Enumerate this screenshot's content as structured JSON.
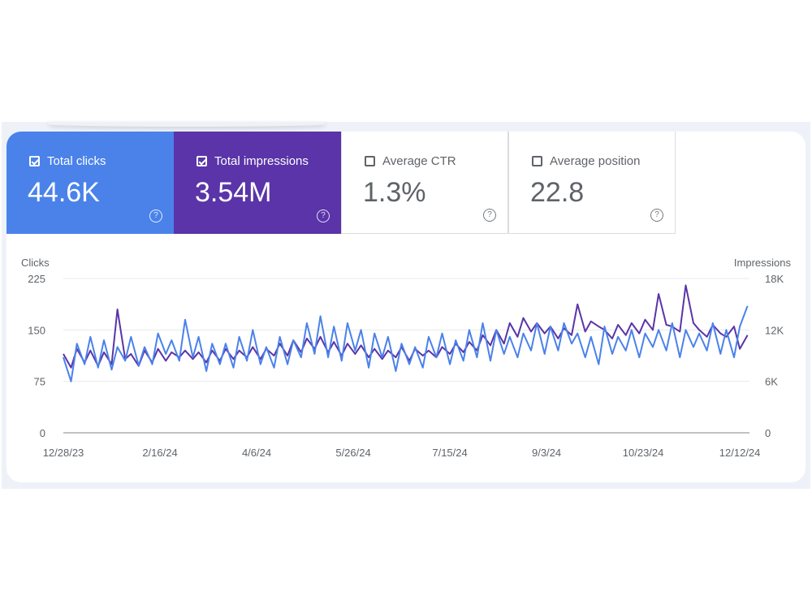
{
  "cards": [
    {
      "id": "clicks",
      "label": "Total clicks",
      "value": "44.6K",
      "checked": true,
      "color": "#4a82ea"
    },
    {
      "id": "impressions",
      "label": "Total impressions",
      "value": "3.54M",
      "checked": true,
      "color": "#5a34a8"
    },
    {
      "id": "ctr",
      "label": "Average CTR",
      "value": "1.3%",
      "checked": false
    },
    {
      "id": "position",
      "label": "Average position",
      "value": "22.8",
      "checked": false
    }
  ],
  "help_glyph": "?",
  "chart_data": {
    "type": "line",
    "ylabel_left": "Clicks",
    "ylabel_right": "Impressions",
    "yticks_left": [
      "0",
      "75",
      "150",
      "225"
    ],
    "yticks_right": [
      "0",
      "6K",
      "12K",
      "18K"
    ],
    "ylim_left": [
      0,
      225
    ],
    "ylim_right": [
      0,
      18000
    ],
    "x_ticks": [
      "12/28/23",
      "2/16/24",
      "4/6/24",
      "5/26/24",
      "7/15/24",
      "9/3/24",
      "10/23/24",
      "12/12/24"
    ],
    "x_tick_day_offsets": [
      0,
      50,
      100,
      150,
      200,
      250,
      300,
      350
    ],
    "x_range_days": [
      0,
      355
    ],
    "grid": true,
    "series": [
      {
        "name": "Clicks",
        "axis": "left",
        "color": "#4a82ea",
        "days": [
          0,
          4,
          7,
          11,
          14,
          18,
          21,
          25,
          28,
          32,
          35,
          39,
          42,
          46,
          49,
          53,
          56,
          60,
          63,
          67,
          70,
          74,
          77,
          81,
          84,
          88,
          91,
          95,
          98,
          102,
          105,
          109,
          112,
          116,
          119,
          123,
          126,
          130,
          133,
          137,
          140,
          144,
          147,
          151,
          154,
          158,
          161,
          165,
          168,
          172,
          175,
          179,
          182,
          186,
          189,
          193,
          196,
          200,
          203,
          207,
          210,
          214,
          217,
          221,
          224,
          228,
          231,
          235,
          238,
          242,
          245,
          249,
          252,
          256,
          259,
          263,
          266,
          270,
          273,
          277,
          280,
          284,
          287,
          291,
          294,
          298,
          301,
          305,
          308,
          312,
          315,
          319,
          322,
          326,
          329,
          333,
          336,
          340,
          343,
          347,
          350,
          354
        ],
        "values": [
          110,
          75,
          130,
          100,
          140,
          95,
          135,
          92,
          125,
          105,
          140,
          98,
          125,
          100,
          145,
          115,
          135,
          105,
          165,
          110,
          140,
          90,
          130,
          100,
          130,
          95,
          140,
          105,
          150,
          100,
          125,
          95,
          140,
          100,
          135,
          110,
          160,
          115,
          170,
          110,
          155,
          105,
          160,
          120,
          150,
          95,
          145,
          110,
          140,
          90,
          130,
          100,
          125,
          95,
          140,
          110,
          145,
          100,
          135,
          105,
          150,
          110,
          160,
          105,
          150,
          115,
          140,
          110,
          145,
          120,
          160,
          115,
          155,
          120,
          160,
          130,
          145,
          110,
          140,
          100,
          155,
          115,
          140,
          120,
          150,
          110,
          145,
          125,
          150,
          120,
          160,
          110,
          150,
          125,
          145,
          120,
          160,
          115,
          150,
          110,
          155,
          185
        ]
      },
      {
        "name": "Impressions",
        "axis": "right",
        "color": "#5a34a8",
        "days": [
          0,
          4,
          7,
          11,
          14,
          18,
          21,
          25,
          28,
          32,
          35,
          39,
          42,
          46,
          49,
          53,
          56,
          60,
          63,
          67,
          70,
          74,
          77,
          81,
          84,
          88,
          91,
          95,
          98,
          102,
          105,
          109,
          112,
          116,
          119,
          123,
          126,
          130,
          133,
          137,
          140,
          144,
          147,
          151,
          154,
          158,
          161,
          165,
          168,
          172,
          175,
          179,
          182,
          186,
          189,
          193,
          196,
          200,
          203,
          207,
          210,
          214,
          217,
          221,
          224,
          228,
          231,
          235,
          238,
          242,
          245,
          249,
          252,
          256,
          259,
          263,
          266,
          270,
          273,
          277,
          280,
          284,
          287,
          291,
          294,
          298,
          301,
          305,
          308,
          312,
          315,
          319,
          322,
          326,
          329,
          333,
          336,
          340,
          343,
          347,
          350,
          354
        ],
        "values": [
          9200,
          7600,
          9800,
          8200,
          9600,
          7800,
          9400,
          8000,
          14400,
          8600,
          9200,
          7800,
          9600,
          8200,
          9800,
          8400,
          9400,
          8800,
          9600,
          8600,
          9400,
          8200,
          9600,
          8400,
          9800,
          8600,
          9600,
          8800,
          10000,
          8600,
          9800,
          9000,
          10400,
          9000,
          10800,
          9400,
          11000,
          9800,
          11200,
          9400,
          10600,
          9000,
          10400,
          9200,
          10200,
          8800,
          9800,
          8600,
          9600,
          8800,
          10000,
          8400,
          9800,
          9000,
          9600,
          8800,
          10000,
          9200,
          10400,
          9400,
          10600,
          9600,
          11400,
          10200,
          12000,
          10400,
          12800,
          11200,
          13400,
          11800,
          12800,
          11600,
          12400,
          11000,
          12200,
          11400,
          15000,
          11800,
          13000,
          12400,
          12000,
          11000,
          12600,
          11400,
          12800,
          11600,
          13200,
          12000,
          16200,
          12600,
          12400,
          11800,
          17200,
          12800,
          12000,
          11200,
          12600,
          11600,
          11200,
          12400,
          9800,
          11400
        ]
      }
    ]
  }
}
